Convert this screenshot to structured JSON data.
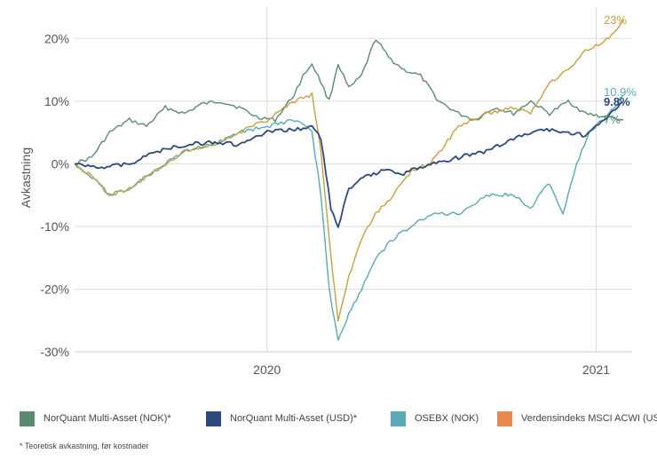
{
  "chart_data": {
    "type": "line",
    "title": "",
    "xlabel": "",
    "ylabel": "Avkastning",
    "ylim": [
      -30,
      25
    ],
    "yticks": [
      -30,
      -20,
      -10,
      0,
      10,
      20
    ],
    "ytick_labels": [
      "-30%",
      "-20%",
      "-10%",
      "0%",
      "10%",
      "20%"
    ],
    "xlim": [
      "2019-06-01",
      "2021-02-10"
    ],
    "xticks": [
      "2020-01-01",
      "2021-01-01"
    ],
    "xtick_labels": [
      "2020",
      "2021"
    ],
    "grid": true,
    "legend_position": "bottom",
    "series": [
      {
        "name": "NorQuant Multi-Asset (NOK)*",
        "color": "#5a8a72",
        "end_label": "7%",
        "points": [
          [
            "2019-06-01",
            0
          ],
          [
            "2019-06-20",
            1
          ],
          [
            "2019-07-10",
            5
          ],
          [
            "2019-08-01",
            7
          ],
          [
            "2019-08-20",
            6
          ],
          [
            "2019-09-10",
            9
          ],
          [
            "2019-10-01",
            8
          ],
          [
            "2019-10-20",
            9.5
          ],
          [
            "2019-11-10",
            10
          ],
          [
            "2019-12-01",
            9
          ],
          [
            "2019-12-20",
            7.5
          ],
          [
            "2020-01-10",
            7
          ],
          [
            "2020-01-31",
            11
          ],
          [
            "2020-02-10",
            14
          ],
          [
            "2020-02-20",
            16
          ],
          [
            "2020-03-01",
            13
          ],
          [
            "2020-03-10",
            10
          ],
          [
            "2020-03-20",
            16
          ],
          [
            "2020-04-01",
            12
          ],
          [
            "2020-04-15",
            14
          ],
          [
            "2020-05-01",
            20
          ],
          [
            "2020-05-15",
            17
          ],
          [
            "2020-06-01",
            15
          ],
          [
            "2020-06-20",
            14
          ],
          [
            "2020-07-10",
            10
          ],
          [
            "2020-08-01",
            8
          ],
          [
            "2020-08-20",
            7
          ],
          [
            "2020-09-10",
            9
          ],
          [
            "2020-10-01",
            8
          ],
          [
            "2020-10-20",
            10
          ],
          [
            "2020-11-10",
            8
          ],
          [
            "2020-12-01",
            10
          ],
          [
            "2020-12-20",
            8
          ],
          [
            "2021-01-10",
            7.5
          ],
          [
            "2021-01-31",
            7
          ]
        ]
      },
      {
        "name": "NorQuant Multi-Asset (USD)*",
        "color": "#2c4a7a",
        "end_label": "9.8%",
        "points": [
          [
            "2019-06-01",
            0
          ],
          [
            "2019-07-01",
            -0.5
          ],
          [
            "2019-08-01",
            0
          ],
          [
            "2019-09-01",
            2
          ],
          [
            "2019-10-01",
            3
          ],
          [
            "2019-11-01",
            3.5
          ],
          [
            "2019-12-01",
            3
          ],
          [
            "2020-01-01",
            5
          ],
          [
            "2020-02-01",
            5.5
          ],
          [
            "2020-02-20",
            6
          ],
          [
            "2020-03-01",
            4
          ],
          [
            "2020-03-12",
            -7
          ],
          [
            "2020-03-20",
            -10
          ],
          [
            "2020-04-01",
            -4
          ],
          [
            "2020-04-20",
            -2
          ],
          [
            "2020-05-10",
            -1
          ],
          [
            "2020-06-01",
            -1.5
          ],
          [
            "2020-07-01",
            0
          ],
          [
            "2020-08-01",
            1
          ],
          [
            "2020-09-01",
            2
          ],
          [
            "2020-10-01",
            4
          ],
          [
            "2020-11-01",
            5.5
          ],
          [
            "2020-12-01",
            5
          ],
          [
            "2020-12-20",
            4.5
          ],
          [
            "2021-01-10",
            7
          ],
          [
            "2021-01-31",
            9.8
          ]
        ]
      },
      {
        "name": "OSEBX (NOK)",
        "color": "#5ba8b8",
        "end_label": "10.9%",
        "points": [
          [
            "2019-06-01",
            0
          ],
          [
            "2019-06-20",
            -2
          ],
          [
            "2019-07-10",
            -5
          ],
          [
            "2019-08-01",
            -4
          ],
          [
            "2019-08-20",
            -2
          ],
          [
            "2019-09-10",
            0
          ],
          [
            "2019-10-01",
            2
          ],
          [
            "2019-11-01",
            3
          ],
          [
            "2019-12-01",
            5
          ],
          [
            "2020-01-01",
            6
          ],
          [
            "2020-02-01",
            7
          ],
          [
            "2020-02-20",
            5
          ],
          [
            "2020-03-01",
            -5
          ],
          [
            "2020-03-10",
            -20
          ],
          [
            "2020-03-20",
            -28
          ],
          [
            "2020-04-01",
            -24
          ],
          [
            "2020-04-15",
            -20
          ],
          [
            "2020-05-01",
            -15
          ],
          [
            "2020-05-20",
            -12
          ],
          [
            "2020-06-10",
            -10
          ],
          [
            "2020-07-01",
            -8
          ],
          [
            "2020-08-01",
            -8
          ],
          [
            "2020-09-01",
            -5
          ],
          [
            "2020-10-01",
            -5
          ],
          [
            "2020-10-20",
            -7
          ],
          [
            "2020-11-10",
            -3
          ],
          [
            "2020-11-25",
            -8
          ],
          [
            "2020-12-10",
            0
          ],
          [
            "2020-12-25",
            5
          ],
          [
            "2021-01-15",
            8
          ],
          [
            "2021-01-31",
            10.9
          ]
        ]
      },
      {
        "name": "Verdensindeks MSCI ACWI (USD)",
        "color": "#c8a040",
        "legend_color": "#e88850",
        "end_label": "23%",
        "points": [
          [
            "2019-06-01",
            0
          ],
          [
            "2019-06-20",
            -2
          ],
          [
            "2019-07-10",
            -5
          ],
          [
            "2019-08-01",
            -4
          ],
          [
            "2019-08-20",
            -2
          ],
          [
            "2019-09-10",
            0
          ],
          [
            "2019-10-01",
            2
          ],
          [
            "2019-11-01",
            3
          ],
          [
            "2019-12-01",
            5
          ],
          [
            "2020-01-01",
            7
          ],
          [
            "2020-02-01",
            10
          ],
          [
            "2020-02-20",
            11
          ],
          [
            "2020-03-01",
            2
          ],
          [
            "2020-03-10",
            -12
          ],
          [
            "2020-03-20",
            -25
          ],
          [
            "2020-04-01",
            -18
          ],
          [
            "2020-04-15",
            -12
          ],
          [
            "2020-05-01",
            -8
          ],
          [
            "2020-05-20",
            -5
          ],
          [
            "2020-06-10",
            -1
          ],
          [
            "2020-07-01",
            0
          ],
          [
            "2020-08-01",
            6
          ],
          [
            "2020-09-01",
            8
          ],
          [
            "2020-10-01",
            9
          ],
          [
            "2020-10-20",
            8
          ],
          [
            "2020-11-10",
            13
          ],
          [
            "2020-12-01",
            15
          ],
          [
            "2020-12-20",
            18
          ],
          [
            "2021-01-15",
            20
          ],
          [
            "2021-01-31",
            23
          ]
        ]
      }
    ]
  },
  "footnote": "* Teoretisk avkastning, før kostnader"
}
